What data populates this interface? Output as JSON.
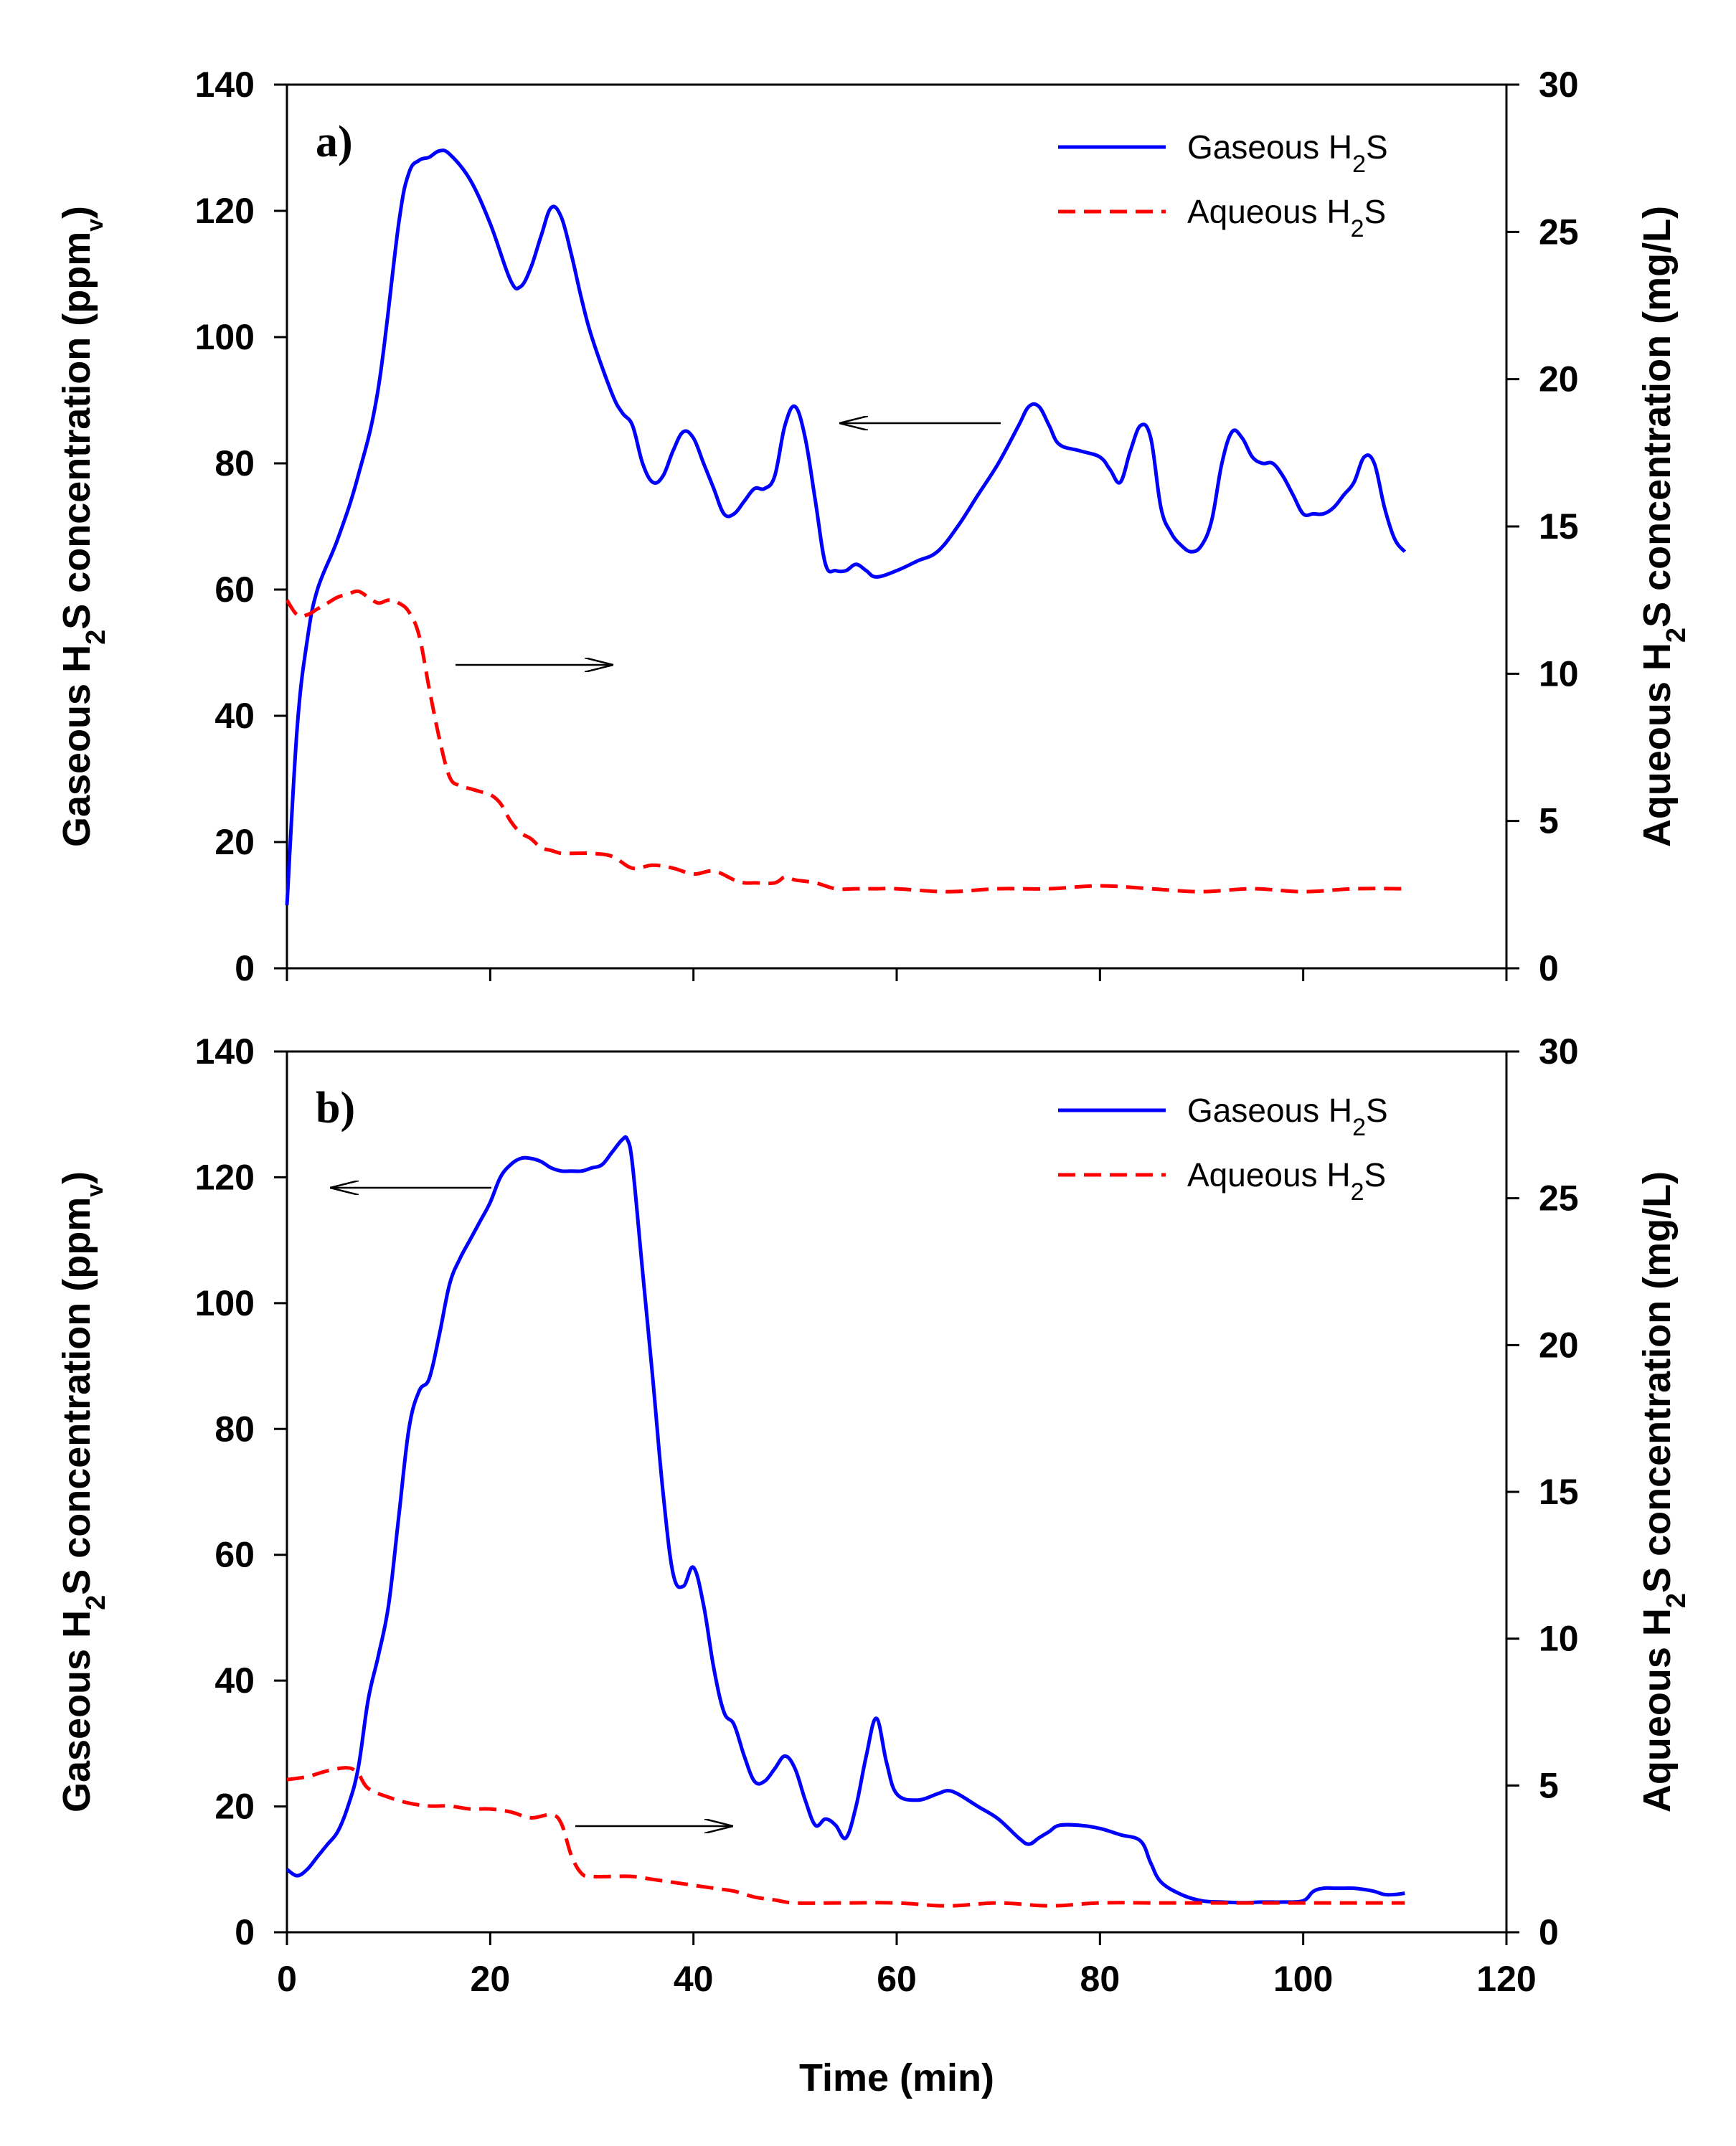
{
  "chart_data": [
    {
      "type": "line",
      "panel_label": "a)",
      "x_range": [
        0,
        120
      ],
      "x_ticks": [
        0,
        20,
        40,
        60,
        80,
        100,
        120
      ],
      "y_left": {
        "range": [
          0,
          140
        ],
        "ticks": [
          0,
          20,
          40,
          60,
          80,
          100,
          120,
          140
        ],
        "label_prefix": "Gaseous H",
        "label_sub": "2",
        "label_mid": "S concentration (ppm",
        "label_sub2": "v",
        "label_suffix": ")"
      },
      "y_right": {
        "range": [
          0,
          30
        ],
        "ticks": [
          0,
          5,
          10,
          15,
          20,
          25,
          30
        ],
        "label_prefix": "Aqueous H",
        "label_sub": "2",
        "label_suffix": "S concentration (mg/L)"
      },
      "legend_position": "top-right",
      "series": [
        {
          "name_prefix": "Gaseous H",
          "name_sub": "2",
          "name_suffix": "S",
          "axis": "left",
          "color": "#0000ff",
          "style": "solid",
          "x": [
            0,
            1,
            2,
            3,
            5,
            7,
            9,
            11,
            12,
            13,
            14,
            15,
            16,
            18,
            20,
            22,
            23,
            24,
            25,
            26,
            27,
            28,
            29,
            30,
            32,
            33,
            34,
            35,
            36,
            37,
            38,
            39,
            40,
            41,
            42,
            43,
            44,
            45,
            46,
            47,
            48,
            49,
            50,
            51,
            52,
            53,
            54,
            55,
            56,
            57,
            58,
            60,
            62,
            64,
            66,
            68,
            70,
            72,
            73,
            74,
            75,
            76,
            78,
            80,
            81,
            82,
            83,
            84,
            85,
            86,
            87,
            88,
            89,
            90,
            91,
            92,
            93,
            94,
            95,
            96,
            97,
            98,
            99,
            100,
            101,
            102,
            103,
            104,
            105,
            106,
            107,
            108,
            109,
            110
          ],
          "y": [
            10,
            38,
            52,
            60,
            68,
            78,
            92,
            118,
            126,
            128,
            128.5,
            129.5,
            129,
            125,
            118,
            109,
            108,
            111,
            116,
            120.5,
            119,
            113,
            106,
            100,
            91,
            88,
            86,
            80,
            77,
            78,
            82,
            85,
            84,
            80,
            76,
            72,
            72,
            74,
            76,
            76,
            78,
            86,
            89,
            84,
            74,
            64,
            63,
            63,
            64,
            63,
            62,
            63,
            64.5,
            66,
            70,
            75,
            80,
            86,
            89,
            89,
            86,
            83,
            82,
            81,
            79,
            77,
            82,
            86,
            84,
            73,
            69,
            67,
            66,
            67,
            71,
            80,
            85,
            84,
            81,
            80,
            80,
            78,
            75,
            72,
            72,
            72,
            73,
            75,
            77,
            81,
            80,
            73,
            68,
            66
          ]
        },
        {
          "name_prefix": "Aqueous H",
          "name_sub": "2",
          "name_suffix": "S",
          "axis": "right",
          "color": "#ff0000",
          "style": "dashed",
          "x": [
            0,
            1,
            2,
            3,
            4,
            5,
            6,
            7,
            8,
            9,
            10,
            11,
            12,
            13,
            14,
            15,
            16,
            17,
            18,
            19,
            20,
            21,
            22,
            23,
            24,
            25,
            26,
            27,
            28,
            30,
            32,
            34,
            36,
            38,
            40,
            42,
            44,
            45,
            46,
            48,
            49,
            50,
            52,
            54,
            56,
            58,
            60,
            65,
            70,
            75,
            80,
            85,
            90,
            95,
            100,
            105,
            110
          ],
          "y": [
            12.5,
            12,
            12,
            12.2,
            12.4,
            12.6,
            12.7,
            12.8,
            12.6,
            12.4,
            12.5,
            12.4,
            12.1,
            11.3,
            9.5,
            7.8,
            6.5,
            6.2,
            6.1,
            6.0,
            5.9,
            5.6,
            5.0,
            4.6,
            4.4,
            4.1,
            4.0,
            3.9,
            3.9,
            3.9,
            3.8,
            3.4,
            3.5,
            3.4,
            3.2,
            3.3,
            3.0,
            2.9,
            2.9,
            2.9,
            3.1,
            3.0,
            2.9,
            2.7,
            2.7,
            2.7,
            2.7,
            2.6,
            2.7,
            2.7,
            2.8,
            2.7,
            2.6,
            2.7,
            2.6,
            2.7,
            2.7
          ]
        }
      ]
    },
    {
      "type": "line",
      "panel_label": "b)",
      "x_range": [
        0,
        120
      ],
      "x_ticks": [
        0,
        20,
        40,
        60,
        80,
        100,
        120
      ],
      "x_tick_labels": [
        "0",
        "20",
        "40",
        "60",
        "80",
        "100",
        "120"
      ],
      "x_label": "Time (min)",
      "y_left": {
        "range": [
          0,
          140
        ],
        "ticks": [
          0,
          20,
          40,
          60,
          80,
          100,
          120,
          140
        ],
        "label_prefix": "Gaseous H",
        "label_sub": "2",
        "label_mid": "S concentration (ppm",
        "label_sub2": "v",
        "label_suffix": ")"
      },
      "y_right": {
        "range": [
          0,
          30
        ],
        "ticks": [
          0,
          5,
          10,
          15,
          20,
          25,
          30
        ],
        "label_prefix": "Aqueous H",
        "label_sub": "2",
        "label_suffix": "S concentration (mg/L)"
      },
      "legend_position": "top-right",
      "series": [
        {
          "name_prefix": "Gaseous H",
          "name_sub": "2",
          "name_suffix": "S",
          "axis": "left",
          "color": "#0000ff",
          "style": "solid",
          "x": [
            0,
            1,
            2,
            3,
            4,
            5,
            6,
            7,
            8,
            9,
            10,
            11,
            12,
            13,
            14,
            15,
            16,
            17,
            18,
            19,
            20,
            21,
            22,
            23,
            24,
            25,
            26,
            27,
            28,
            29,
            30,
            31,
            32,
            33,
            33.5,
            34,
            35,
            36,
            37,
            38,
            39,
            40,
            41,
            42,
            43,
            44,
            45,
            46,
            47,
            48,
            49,
            50,
            51,
            52,
            53,
            54,
            55,
            56,
            57,
            58,
            59,
            60,
            62,
            64,
            65,
            66,
            68,
            70,
            72,
            73,
            74,
            75,
            76,
            78,
            80,
            82,
            84,
            85,
            86,
            88,
            90,
            92,
            94,
            96,
            98,
            100,
            101,
            102,
            103,
            104,
            105,
            106,
            107,
            108,
            109,
            110
          ],
          "y": [
            10,
            9,
            10,
            12,
            14,
            16,
            20,
            26,
            37,
            44,
            52,
            66,
            80,
            86,
            88,
            95,
            103,
            107,
            110,
            113,
            116,
            120,
            122,
            123,
            123,
            122.5,
            121.5,
            121,
            121,
            121,
            121.5,
            122,
            124,
            126,
            126,
            122,
            105,
            88,
            70,
            57,
            55,
            58,
            52,
            42,
            35,
            33,
            28,
            24,
            24,
            26,
            28,
            26,
            21,
            17,
            18,
            17,
            15,
            20,
            28,
            34,
            27,
            22,
            21,
            22,
            22.5,
            22,
            20,
            18,
            15,
            14,
            15,
            16,
            17,
            17,
            16.5,
            15.5,
            14.5,
            11,
            8,
            6,
            5,
            4.8,
            4.7,
            4.8,
            4.8,
            5,
            6.5,
            7,
            7,
            7,
            7,
            6.8,
            6.5,
            6,
            6,
            6.2
          ]
        },
        {
          "name_prefix": "Aqueous H",
          "name_sub": "2",
          "name_suffix": "S",
          "axis": "right",
          "color": "#ff0000",
          "style": "dashed",
          "x": [
            0,
            2,
            4,
            6,
            7,
            8,
            10,
            12,
            14,
            16,
            18,
            20,
            22,
            24,
            26,
            27,
            28,
            29,
            30,
            32,
            34,
            36,
            38,
            40,
            42,
            44,
            46,
            48,
            50,
            55,
            60,
            65,
            70,
            75,
            80,
            85,
            90,
            95,
            100,
            105,
            110
          ],
          "y": [
            5.2,
            5.3,
            5.5,
            5.6,
            5.4,
            4.9,
            4.6,
            4.4,
            4.3,
            4.3,
            4.2,
            4.2,
            4.1,
            3.9,
            4.0,
            3.7,
            2.6,
            2.0,
            1.9,
            1.9,
            1.9,
            1.8,
            1.7,
            1.6,
            1.5,
            1.4,
            1.2,
            1.1,
            1.0,
            1.0,
            1.0,
            0.9,
            1.0,
            0.9,
            1.0,
            1.0,
            1.0,
            1.0,
            1.0,
            1.0,
            1.0
          ]
        }
      ]
    }
  ]
}
